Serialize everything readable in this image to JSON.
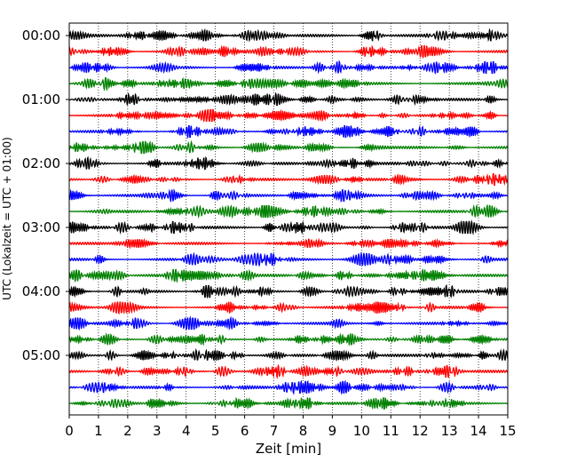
{
  "chart_data": {
    "type": "line",
    "title": "",
    "xlabel": "Zeit  [min]",
    "ylabel": "UTC (Lokalzeit = UTC + 01:00)",
    "xlim": [
      0,
      15
    ],
    "x_ticks": [
      "0",
      "1",
      "2",
      "3",
      "4",
      "5",
      "6",
      "7",
      "8",
      "9",
      "10",
      "11",
      "12",
      "13",
      "14",
      "15"
    ],
    "y_ticks": [
      "00:00",
      "01:00",
      "02:00",
      "03:00",
      "04:00",
      "05:00"
    ],
    "grid": "vertical dotted lines at each minute",
    "legend": "none",
    "trace_colors": [
      "#000000",
      "#ff0000",
      "#0000ff",
      "#008000"
    ],
    "trace_count": 24,
    "minutes_per_trace": 15,
    "series_description": "Seismogram helicorder: 24 consecutive 15-minute traces from 00:00 to 06:00 UTC, each an oscillating waveform of small amplitude, colors cycling black, red, blue, green."
  }
}
